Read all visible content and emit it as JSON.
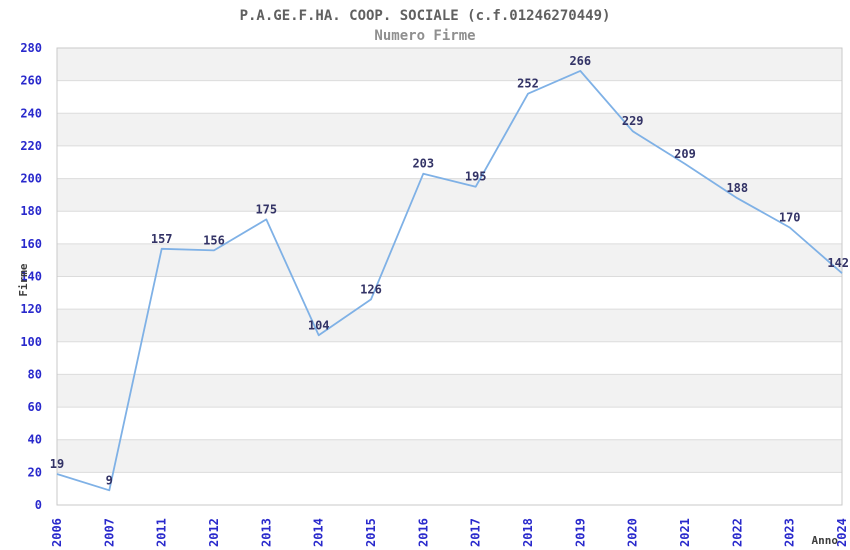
{
  "chart_data": {
    "type": "line",
    "title": "P.A.GE.F.HA. COOP. SOCIALE (c.f.01246270449)",
    "subtitle": "Numero Firme",
    "xlabel": "Anno",
    "ylabel": "Firme",
    "categories": [
      "2006",
      "2007",
      "2011",
      "2012",
      "2013",
      "2014",
      "2015",
      "2016",
      "2017",
      "2018",
      "2019",
      "2020",
      "2021",
      "2022",
      "2023",
      "2024"
    ],
    "values": [
      19,
      9,
      157,
      156,
      175,
      104,
      126,
      203,
      195,
      252,
      266,
      229,
      209,
      188,
      170,
      142
    ],
    "ylim": [
      0,
      280
    ],
    "ytick_step": 20,
    "grid": true,
    "bands_alternating": true,
    "legend_position": "none",
    "point_markers": false,
    "colors": {
      "line": "#7fb1e6",
      "tick_label": "#2929cc",
      "point_label": "#333366",
      "title": "#606060",
      "subtitle": "#8f8f8f",
      "axis_title": "#3d3d3d",
      "band": "#f2f2f2",
      "gridline": "#dcdcdc",
      "plot_border": "#c9c9c9",
      "background": "#ffffff"
    }
  }
}
